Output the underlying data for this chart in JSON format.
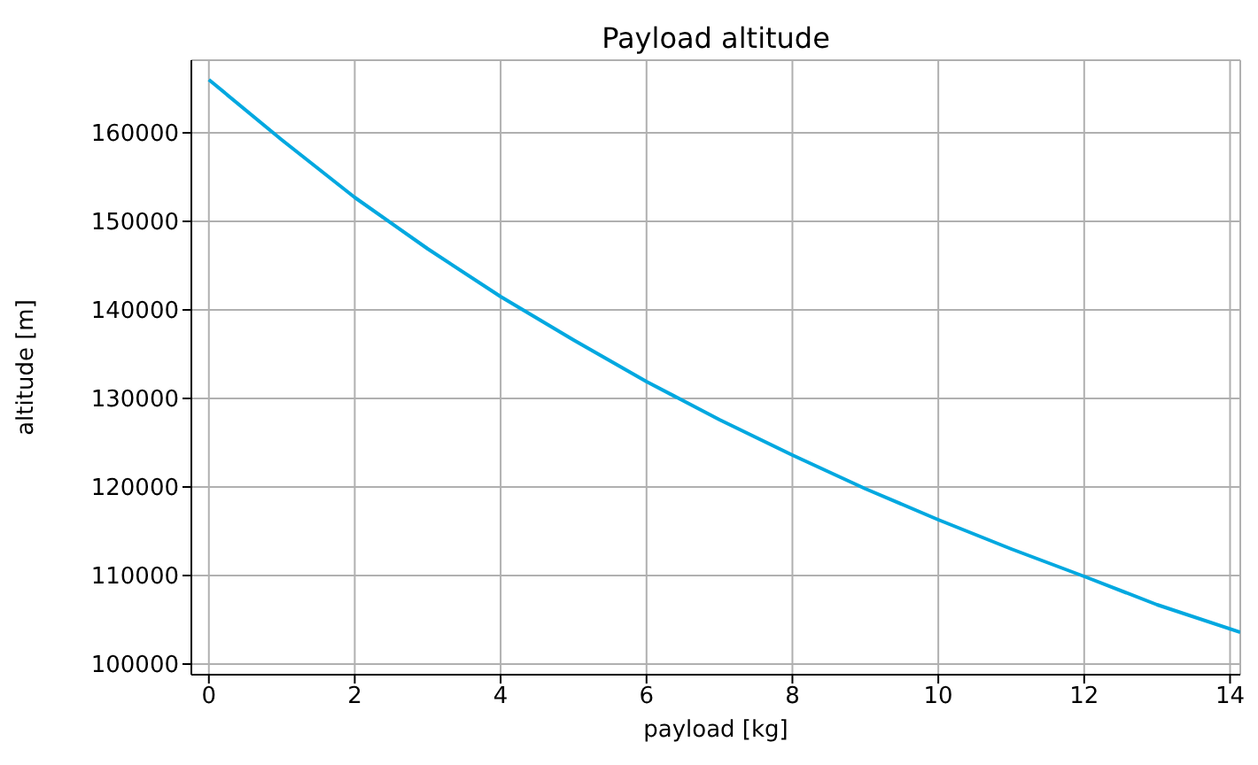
{
  "chart_data": {
    "type": "line",
    "title": "Payload altitude",
    "xlabel": "payload [kg]",
    "ylabel": "altitude [m]",
    "x": [
      0,
      1,
      2,
      3,
      4,
      5,
      6,
      7,
      8,
      9,
      10,
      11,
      12,
      13,
      14.14
    ],
    "series": [
      {
        "color": "#00a8e0",
        "values": [
          166000,
          159200,
          152700,
          146900,
          141500,
          136600,
          131900,
          127600,
          123600,
          119800,
          116300,
          113000,
          109900,
          106700,
          103600
        ]
      }
    ],
    "xlim": [
      -0.24,
      14.14
    ],
    "ylim": [
      98800,
      168200
    ],
    "xticks": [
      0,
      2,
      4,
      6,
      8,
      10,
      12,
      14
    ],
    "yticks": [
      100000,
      110000,
      120000,
      130000,
      140000,
      150000,
      160000
    ],
    "grid": true,
    "marker": "none",
    "line_style": "solid"
  }
}
